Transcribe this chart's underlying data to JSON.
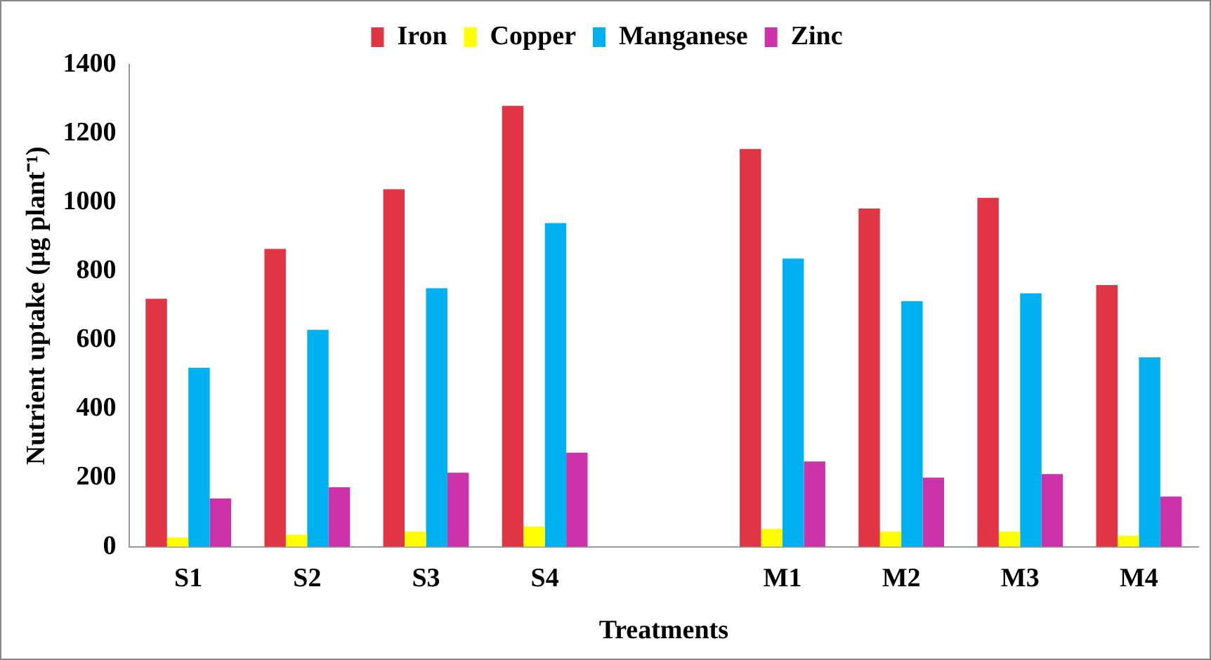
{
  "chart_data": {
    "type": "bar",
    "xlabel": "Treatments",
    "ylabel": "Nutrient uptake (µg plant⁻¹)",
    "categories": [
      "S1",
      "S2",
      "S3",
      "S4",
      null,
      "M1",
      "M2",
      "M3",
      "M4"
    ],
    "series": [
      {
        "name": "Iron",
        "color": "#e03545",
        "values": [
          720,
          865,
          1038,
          1280,
          null,
          1155,
          982,
          1013,
          760
        ]
      },
      {
        "name": "Copper",
        "color": "#ffff00",
        "values": [
          27,
          35,
          44,
          59,
          null,
          52,
          44,
          44,
          32
        ]
      },
      {
        "name": "Manganese",
        "color": "#00b0f0",
        "values": [
          520,
          630,
          751,
          940,
          null,
          837,
          713,
          736,
          550
        ]
      },
      {
        "name": "Zinc",
        "color": "#cc33aa",
        "values": [
          140,
          173,
          215,
          273,
          null,
          248,
          201,
          211,
          146
        ]
      }
    ],
    "ylim": [
      0,
      1400
    ],
    "yticks": [
      0,
      200,
      400,
      600,
      800,
      1000,
      1200,
      1400
    ],
    "grid": false,
    "legend": "top"
  }
}
